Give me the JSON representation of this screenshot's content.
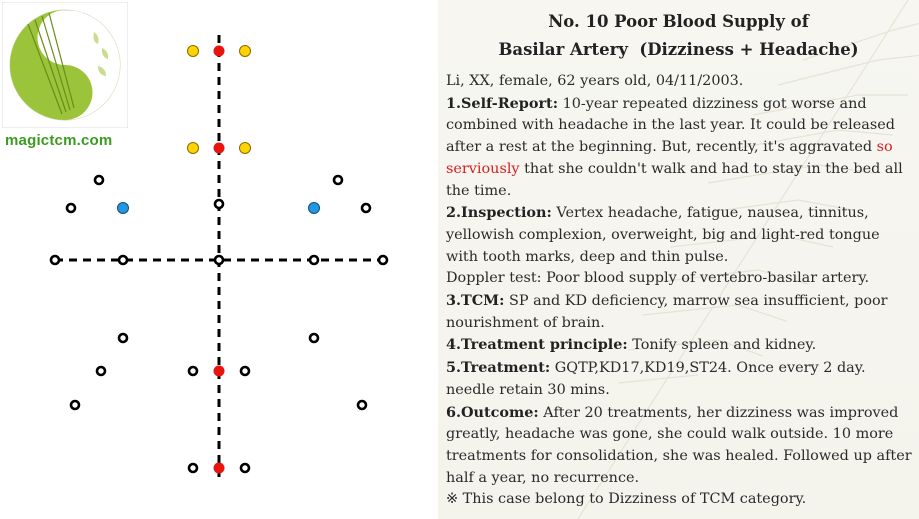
{
  "logo": {
    "site": "magictcm.com"
  },
  "colors": {
    "acupoint_main": "#e8150f",
    "acupoint_secondary": "#ffd400",
    "acupoint_blue": "#2596e0",
    "site_green": "#3c9c22",
    "highlight": "#d62020"
  },
  "case": {
    "title_line1": "No. 10 Poor Blood Supply of",
    "title_line2": "Basilar Artery  (Dizziness + Headache)",
    "patient": "Li, XX, female, 62 years old, 04/11/2003.",
    "self_report_label": "1.Self-Report:",
    "self_report_text1": " 10-year repeated dizziness got worse and combined with headache in the last year. It could be released after a rest at the beginning. But, recently, it's aggravated ",
    "self_report_highlight": "so serviously",
    "self_report_text2": " that she couldn't walk and had to stay in the bed all the time.",
    "inspection_label": "2.Inspection:",
    "inspection_text": " Vertex headache, fatigue, nausea, tinnitus, yellowish complexion, overweight, big and light-red tongue with tooth marks, deep and thin pulse.",
    "doppler": "Doppler test: Poor blood supply of vertebro-basilar artery.",
    "tcm_label": "3.TCM:",
    "tcm_text": " SP and KD deficiency, marrow sea insufficient, poor nourishment of brain.",
    "principle_label": "4.Treatment principle:",
    "principle_text": " Tonify spleen and kidney.",
    "treatment_label": "5.Treatment:",
    "treatment_text": " GQTP,KD17,KD19,ST24. Once every 2 day. needle retain 30 mins.",
    "outcome_label": "6.Outcome:",
    "outcome_text": " After 20 treatments, her dizziness  was improved greatly, headache was gone, she could walk outside. 10 more treatments for consolidation, she was healed. Followed up after half a year, no recurrence.",
    "note": "※ This case belong to Dizziness of TCM category."
  }
}
